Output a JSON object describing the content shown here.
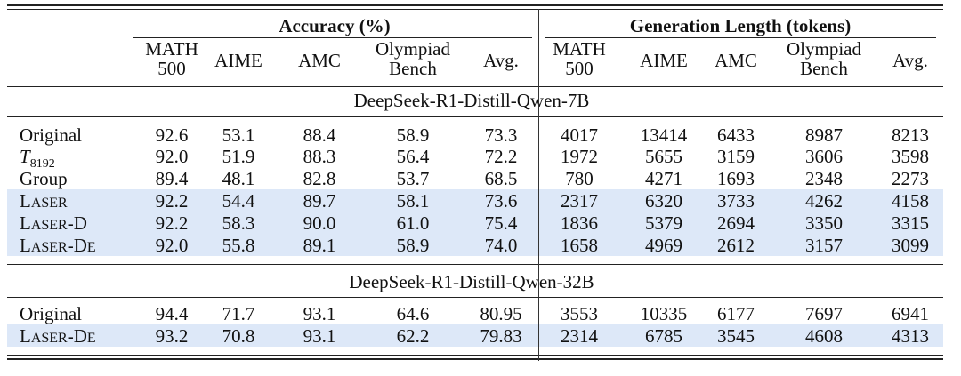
{
  "header": {
    "accuracy_group": "Accuracy (%)",
    "length_group": "Generation Length (tokens)",
    "columns": [
      [
        "MATH",
        "500"
      ],
      [
        "AIME"
      ],
      [
        "AMC"
      ],
      [
        "Olympiad",
        "Bench"
      ],
      [
        "Avg."
      ],
      [
        "MATH",
        "500"
      ],
      [
        "AIME"
      ],
      [
        "AMC"
      ],
      [
        "Olympiad",
        "Bench"
      ],
      [
        "Avg."
      ]
    ]
  },
  "sections": [
    {
      "title": "DeepSeek-R1-Distill-Qwen-7B",
      "rows": [
        {
          "name": "Original",
          "highlight": false,
          "values": [
            "92.6",
            "53.1",
            "88.4",
            "58.9",
            "73.3",
            "4017",
            "13414",
            "6433",
            "8987",
            "8213"
          ]
        },
        {
          "name": "T",
          "subscript": "8192",
          "highlight": false,
          "values": [
            "92.0",
            "51.9",
            "88.3",
            "56.4",
            "72.2",
            "1972",
            "5655",
            "3159",
            "3606",
            "3598"
          ]
        },
        {
          "name": "Group",
          "highlight": false,
          "values": [
            "89.4",
            "48.1",
            "82.8",
            "53.7",
            "68.5",
            "780",
            "4271",
            "1693",
            "2348",
            "2273"
          ]
        },
        {
          "name": "LASER",
          "smallcaps": true,
          "highlight": true,
          "values": [
            "92.2",
            "54.4",
            "89.7",
            "58.1",
            "73.6",
            "2317",
            "6320",
            "3733",
            "4262",
            "4158"
          ]
        },
        {
          "name": "LASER-D",
          "smallcaps": true,
          "highlight": true,
          "values": [
            "92.2",
            "58.3",
            "90.0",
            "61.0",
            "75.4",
            "1836",
            "5379",
            "2694",
            "3350",
            "3315"
          ]
        },
        {
          "name": "LASER-DE",
          "smallcaps": true,
          "highlight": true,
          "values": [
            "92.0",
            "55.8",
            "89.1",
            "58.9",
            "74.0",
            "1658",
            "4969",
            "2612",
            "3157",
            "3099"
          ]
        }
      ]
    },
    {
      "title": "DeepSeek-R1-Distill-Qwen-32B",
      "rows": [
        {
          "name": "Original",
          "highlight": false,
          "values": [
            "94.4",
            "71.7",
            "93.1",
            "64.6",
            "80.95",
            "3553",
            "10335",
            "6177",
            "7697",
            "6941"
          ]
        },
        {
          "name": "LASER-DE",
          "smallcaps": true,
          "highlight": true,
          "values": [
            "93.2",
            "70.8",
            "93.1",
            "62.2",
            "79.83",
            "2314",
            "6785",
            "3545",
            "4608",
            "4313"
          ]
        }
      ]
    }
  ]
}
